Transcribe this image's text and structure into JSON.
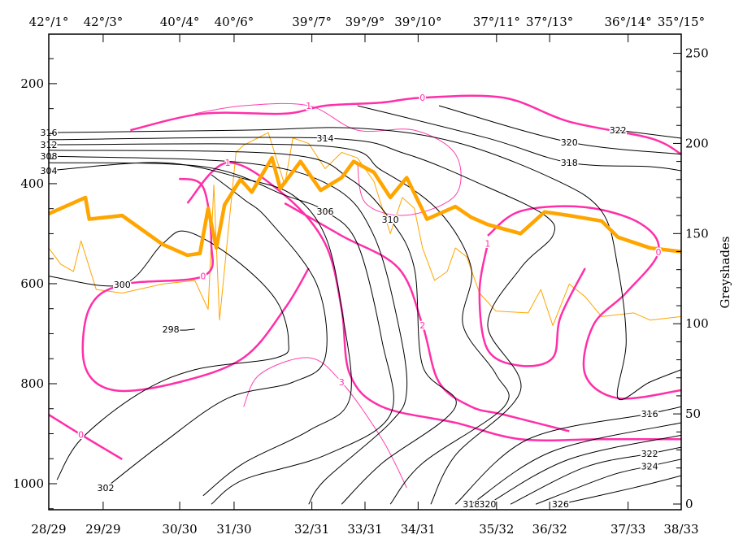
{
  "chart_data": {
    "type": "line",
    "title": "",
    "x_stations": {
      "positions": [
        0,
        8.6,
        20.7,
        29.3,
        41.6,
        50,
        58.4,
        70.8,
        79.2,
        91.6,
        100
      ],
      "top_labels": [
        "42°/1°",
        "42°/3°",
        "40°/4°",
        "40°/6°",
        "39°/7°",
        "39°/9°",
        "39°/10°",
        "37°/11°",
        "37°/13°",
        "36°/14°",
        "35°/15°"
      ],
      "bottom_labels": [
        "28/29",
        "29/29",
        "30/30",
        "31/30",
        "32/31",
        "33/31",
        "34/31",
        "35/32",
        "36/32",
        "37/33",
        "38/33"
      ]
    },
    "xlim": [
      0,
      100
    ],
    "left_axis": {
      "label": "",
      "ylim": [
        1052,
        101
      ],
      "ticks": [
        200,
        400,
        600,
        800,
        1000
      ]
    },
    "right_axis": {
      "label": "Greyshades",
      "ylim": [
        0,
        257
      ],
      "ticks": [
        0,
        50,
        100,
        150,
        200,
        250
      ]
    },
    "colors": {
      "isentropes": "#000000",
      "pv_thick": "#ff2fa8",
      "pv_thin": "#ff3fb0",
      "grey_thick": "#ffa500",
      "grey_thin": "#ffa500"
    },
    "isentropes": [
      {
        "value": "300",
        "label_index": 1,
        "points": [
          [
            0,
            585
          ],
          [
            11.6,
            602
          ],
          [
            18,
            520
          ],
          [
            21.9,
            496
          ],
          [
            29.6,
            553
          ],
          [
            36,
            634
          ],
          [
            37.9,
            715
          ],
          [
            36,
            748
          ],
          [
            23.1,
            772
          ],
          [
            14.1,
            821
          ],
          [
            5.1,
            911
          ],
          [
            1.3,
            992
          ]
        ]
      },
      {
        "value": "298",
        "label_index": 0,
        "points": [
          [
            19.3,
            691
          ],
          [
            21.2,
            693
          ],
          [
            23.1,
            691
          ]
        ]
      },
      {
        "value": "302",
        "label_index": 0,
        "points": [
          [
            9,
            1008
          ],
          [
            18,
            919
          ],
          [
            28.3,
            829
          ],
          [
            38.6,
            797
          ],
          [
            43.7,
            748
          ],
          [
            42.4,
            602
          ],
          [
            34.7,
            472
          ],
          [
            30.8,
            431
          ],
          [
            25.7,
            382
          ]
        ]
      },
      {
        "value": "304",
        "label_index": 0,
        "points": [
          [
            0,
            374
          ],
          [
            18,
            358
          ],
          [
            30.8,
            390
          ],
          [
            38.6,
            423
          ],
          [
            43.7,
            504
          ],
          [
            46.3,
            650
          ],
          [
            47.6,
            829
          ],
          [
            41.1,
            894
          ],
          [
            30.8,
            959
          ],
          [
            24.4,
            1024
          ]
        ]
      },
      {
        "value": "306",
        "label_index": 3,
        "points": [
          [
            0,
            358
          ],
          [
            24.4,
            366
          ],
          [
            37.3,
            423
          ],
          [
            43.7,
            455
          ],
          [
            48.8,
            520
          ],
          [
            52.7,
            715
          ],
          [
            54,
            862
          ],
          [
            43.7,
            943
          ],
          [
            30.8,
            992
          ],
          [
            25.7,
            1041
          ]
        ]
      },
      {
        "value": "308",
        "label_index": 0,
        "points": [
          [
            0,
            345
          ],
          [
            30.8,
            358
          ],
          [
            45,
            407
          ],
          [
            51.4,
            504
          ],
          [
            55.3,
            683
          ],
          [
            56.6,
            813
          ],
          [
            54,
            878
          ],
          [
            43.7,
            992
          ],
          [
            41.1,
            1041
          ]
        ]
      },
      {
        "value": "310",
        "label_index": 3,
        "points": [
          [
            0,
            333
          ],
          [
            37.3,
            341
          ],
          [
            47.6,
            390
          ],
          [
            54,
            472
          ],
          [
            57.8,
            569
          ],
          [
            59.1,
            764
          ],
          [
            64.3,
            846
          ],
          [
            52.7,
            959
          ],
          [
            46.3,
            1041
          ]
        ]
      },
      {
        "value": "312",
        "label_index": 0,
        "points": [
          [
            0,
            322
          ],
          [
            43.7,
            325
          ],
          [
            52.7,
            374
          ],
          [
            61.7,
            455
          ],
          [
            66.8,
            569
          ],
          [
            65.5,
            683
          ],
          [
            70.7,
            781
          ],
          [
            72,
            846
          ],
          [
            59.1,
            959
          ],
          [
            54,
            1041
          ]
        ]
      },
      {
        "value": "314",
        "label_index": 1,
        "points": [
          [
            0,
            312
          ],
          [
            43.7,
            309
          ],
          [
            56.6,
            341
          ],
          [
            69.4,
            407
          ],
          [
            78.4,
            463
          ],
          [
            79.7,
            504
          ],
          [
            74.6,
            569
          ],
          [
            69.4,
            683
          ],
          [
            74.6,
            813
          ],
          [
            64.3,
            943
          ],
          [
            60.4,
            1041
          ]
        ]
      },
      {
        "value": "316",
        "label_index": 0,
        "points": [
          [
            0,
            298
          ],
          [
            30.8,
            293
          ],
          [
            48.8,
            289
          ],
          [
            64.3,
            317
          ],
          [
            79.7,
            390
          ],
          [
            87.4,
            455
          ],
          [
            90,
            569
          ],
          [
            91.3,
            715
          ],
          [
            90,
            829
          ],
          [
            95,
            797
          ],
          [
            100,
            772
          ]
        ]
      },
      {
        "value": "318",
        "label_index": 2,
        "points": [
          [
            48.8,
            244
          ],
          [
            69.4,
            309
          ],
          [
            82.3,
            358
          ],
          [
            95.1,
            366
          ],
          [
            100,
            374
          ]
        ]
      },
      {
        "value": "320",
        "label_index": 1,
        "points": [
          [
            61.7,
            244
          ],
          [
            82.3,
            317
          ],
          [
            100,
            341
          ]
        ]
      },
      {
        "value": "322",
        "label_index": 0,
        "points": [
          [
            90,
            293
          ],
          [
            100,
            309
          ]
        ]
      },
      {
        "value": "316",
        "label_index": 2,
        "points": [
          [
            64.3,
            1041
          ],
          [
            75.8,
            911
          ],
          [
            95,
            860
          ],
          [
            100,
            846
          ]
        ]
      },
      {
        "value": "318",
        "label_index": 0,
        "points": [
          [
            66.8,
            1041
          ],
          [
            79.7,
            935
          ],
          [
            100,
            878
          ]
        ]
      },
      {
        "value": "320",
        "label_index": 0,
        "points": [
          [
            69.4,
            1041
          ],
          [
            82.3,
            951
          ],
          [
            100,
            903
          ]
        ]
      },
      {
        "value": "322",
        "label_index": 2,
        "points": [
          [
            73,
            1041
          ],
          [
            84.8,
            967
          ],
          [
            95,
            940
          ],
          [
            100,
            927
          ]
        ]
      },
      {
        "value": "324",
        "label_index": 2,
        "points": [
          [
            77,
            1041
          ],
          [
            88.7,
            984
          ],
          [
            95,
            965
          ],
          [
            100,
            951
          ]
        ]
      },
      {
        "value": "326",
        "label_index": 0,
        "points": [
          [
            80.9,
            1041
          ],
          [
            92.5,
            1008
          ],
          [
            100,
            984
          ]
        ]
      }
    ],
    "pv_lines": [
      {
        "value": "0",
        "thick": true,
        "label_index": 5,
        "points": [
          [
            12.9,
            293
          ],
          [
            24.4,
            260
          ],
          [
            37.3,
            260
          ],
          [
            43.7,
            244
          ],
          [
            52.5,
            238
          ],
          [
            59.1,
            228
          ],
          [
            71.9,
            228
          ],
          [
            82.3,
            276
          ],
          [
            95.1,
            309
          ],
          [
            100,
            341
          ]
        ]
      },
      {
        "value": "0",
        "thick": true,
        "label_index": 3,
        "points": [
          [
            20.6,
            390
          ],
          [
            24.4,
            407
          ],
          [
            25.7,
            520
          ],
          [
            24.4,
            585
          ],
          [
            11.6,
            602
          ],
          [
            6.4,
            650
          ],
          [
            5.7,
            764
          ],
          [
            10.3,
            813
          ],
          [
            20.6,
            797
          ],
          [
            30.8,
            748
          ],
          [
            37.3,
            650
          ],
          [
            41.1,
            569
          ]
        ]
      },
      {
        "value": "1",
        "thick": true,
        "label_index": 1,
        "points": [
          [
            21.9,
            439
          ],
          [
            28.3,
            358
          ],
          [
            37.3,
            423
          ],
          [
            43.7,
            520
          ],
          [
            46.3,
            650
          ],
          [
            47.6,
            781
          ],
          [
            52.7,
            846
          ],
          [
            64.3,
            878
          ],
          [
            74.6,
            911
          ],
          [
            87.4,
            911
          ],
          [
            100,
            911
          ]
        ]
      },
      {
        "value": "2",
        "thick": true,
        "label_index": 3,
        "points": [
          [
            37.3,
            439
          ],
          [
            46.3,
            504
          ],
          [
            55.3,
            569
          ],
          [
            59.1,
            683
          ],
          [
            61.7,
            797
          ],
          [
            66.8,
            846
          ],
          [
            72,
            862
          ],
          [
            82.3,
            895
          ]
        ]
      },
      {
        "value": "0",
        "thick": true,
        "label_index": 4,
        "points": [
          [
            69.4,
            504
          ],
          [
            74.6,
            455
          ],
          [
            84.8,
            447
          ],
          [
            93.6,
            480
          ],
          [
            96.4,
            537
          ],
          [
            91.3,
            618
          ],
          [
            86.1,
            683
          ],
          [
            84.8,
            781
          ],
          [
            90,
            829
          ],
          [
            100,
            813
          ]
        ]
      },
      {
        "value": "1",
        "thick": true,
        "label_index": 0,
        "points": [
          [
            69.4,
            520
          ],
          [
            68.1,
            618
          ],
          [
            69.4,
            732
          ],
          [
            74.6,
            764
          ],
          [
            79.7,
            748
          ],
          [
            80.9,
            667
          ],
          [
            84.8,
            569
          ]
        ]
      },
      {
        "value": "0",
        "thick": true,
        "label_index": 1,
        "points": [
          [
            0,
            862
          ],
          [
            5.1,
            902
          ],
          [
            11.6,
            951
          ]
        ]
      },
      {
        "value": "1",
        "thick": false,
        "label_index": 2,
        "points": [
          [
            23.1,
            260
          ],
          [
            30.8,
            244
          ],
          [
            41.1,
            244
          ],
          [
            48.8,
            293
          ],
          [
            57.8,
            293
          ],
          [
            64.3,
            341
          ],
          [
            64.3,
            423
          ],
          [
            56.6,
            463
          ],
          [
            50.1,
            439
          ],
          [
            48.8,
            358
          ]
        ]
      },
      {
        "value": "3",
        "thick": false,
        "label_index": 3,
        "points": [
          [
            30.8,
            846
          ],
          [
            33.4,
            781
          ],
          [
            41.1,
            748
          ],
          [
            46.3,
            797
          ],
          [
            52.7,
            911
          ],
          [
            56.6,
            1008
          ]
        ]
      }
    ],
    "greyshade_thick": {
      "x": [
        0,
        5.8,
        6.4,
        11.6,
        18,
        21.9,
        23.9,
        25.2,
        26.5,
        27.8,
        30.3,
        32.1,
        35.3,
        36.6,
        39.8,
        43,
        46.3,
        48.2,
        51.4,
        54,
        56.6,
        59.8,
        64.3,
        66.8,
        69.4,
        74.6,
        78.4,
        82.3,
        87.4,
        90,
        95.1,
        100
      ],
      "values": [
        161,
        170,
        158,
        160,
        144,
        138,
        139,
        164,
        142,
        166,
        180,
        173,
        192,
        175,
        190,
        174,
        181,
        190,
        184,
        170,
        181,
        158,
        165,
        159,
        155,
        150,
        162,
        160,
        157,
        148,
        142,
        140
      ]
    },
    "greyshade_thin": {
      "x": [
        0,
        1.9,
        3.9,
        5.1,
        7.5,
        11.6,
        18,
        23.1,
        25.2,
        26.1,
        27,
        29.6,
        30.8,
        34.7,
        37.3,
        38.6,
        41.1,
        43.7,
        46.3,
        48.8,
        51.4,
        54,
        55.9,
        57.8,
        59.1,
        61,
        63,
        64.3,
        66.1,
        68.1,
        70.7,
        75.8,
        77.8,
        79.7,
        82.3,
        84.8,
        87.4,
        92.5,
        95.1,
        100
      ],
      "values": [
        142,
        133,
        129,
        146,
        119,
        117,
        122,
        124,
        108,
        177,
        102,
        195,
        199,
        206,
        177,
        203,
        200,
        186,
        195,
        192,
        179,
        150,
        170,
        164,
        142,
        124,
        129,
        142,
        137,
        117,
        107,
        106,
        119,
        99,
        122,
        115,
        104,
        106,
        102,
        104
      ]
    }
  }
}
